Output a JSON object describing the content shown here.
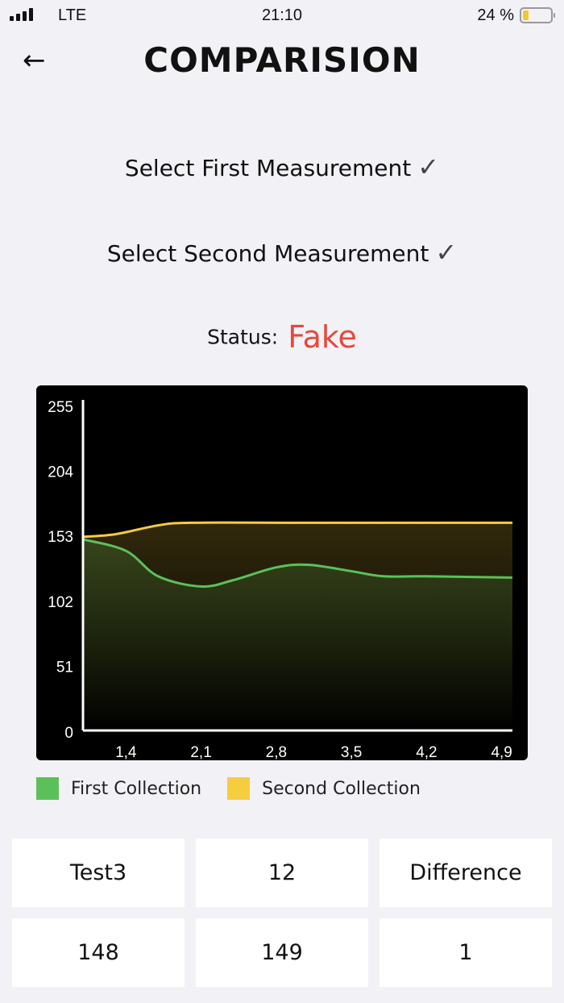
{
  "status_bar": {
    "carrier": "LTE",
    "time": "21:10",
    "battery": "24 %",
    "battery_level": 0.24,
    "battery_color": "#f3c633"
  },
  "header": {
    "title": "COMPARISION",
    "back_icon": "arrow-left-icon"
  },
  "selections": [
    {
      "label": "Select First Measurement",
      "check": "✓"
    },
    {
      "label": "Select Second Measurement",
      "check": "✓"
    }
  ],
  "status": {
    "label": "Status:",
    "value": "Fake",
    "color": "#e5493a"
  },
  "chart_data": {
    "type": "area",
    "x_ticks": [
      "1,4",
      "2,1",
      "2,8",
      "3,5",
      "4,2",
      "4,9"
    ],
    "y_ticks": [
      "0",
      "51",
      "102",
      "153",
      "204",
      "255"
    ],
    "xlim": [
      1.0,
      5.0
    ],
    "ylim": [
      0,
      255
    ],
    "grid": false,
    "series": [
      {
        "name": "First Collection",
        "color": "#5cc05a",
        "x": [
          1.0,
          1.4,
          1.7,
          2.1,
          2.4,
          2.8,
          3.1,
          3.5,
          3.8,
          4.2,
          5.0
        ],
        "y": [
          150,
          141,
          121,
          113,
          118,
          128,
          130,
          125,
          121,
          121,
          120
        ]
      },
      {
        "name": "Second Collection",
        "color": "#f6cd3e",
        "x": [
          1.0,
          1.3,
          1.7,
          2.0,
          3.0,
          4.0,
          5.0
        ],
        "y": [
          152,
          154,
          161,
          163,
          163,
          163,
          163
        ]
      }
    ]
  },
  "legend": [
    {
      "label": "First Collection",
      "color": "#5cc05a"
    },
    {
      "label": "Second Collection",
      "color": "#f6cd3e"
    }
  ],
  "table": [
    [
      "Test3",
      "12",
      "Difference"
    ],
    [
      "148",
      "149",
      "1"
    ]
  ]
}
